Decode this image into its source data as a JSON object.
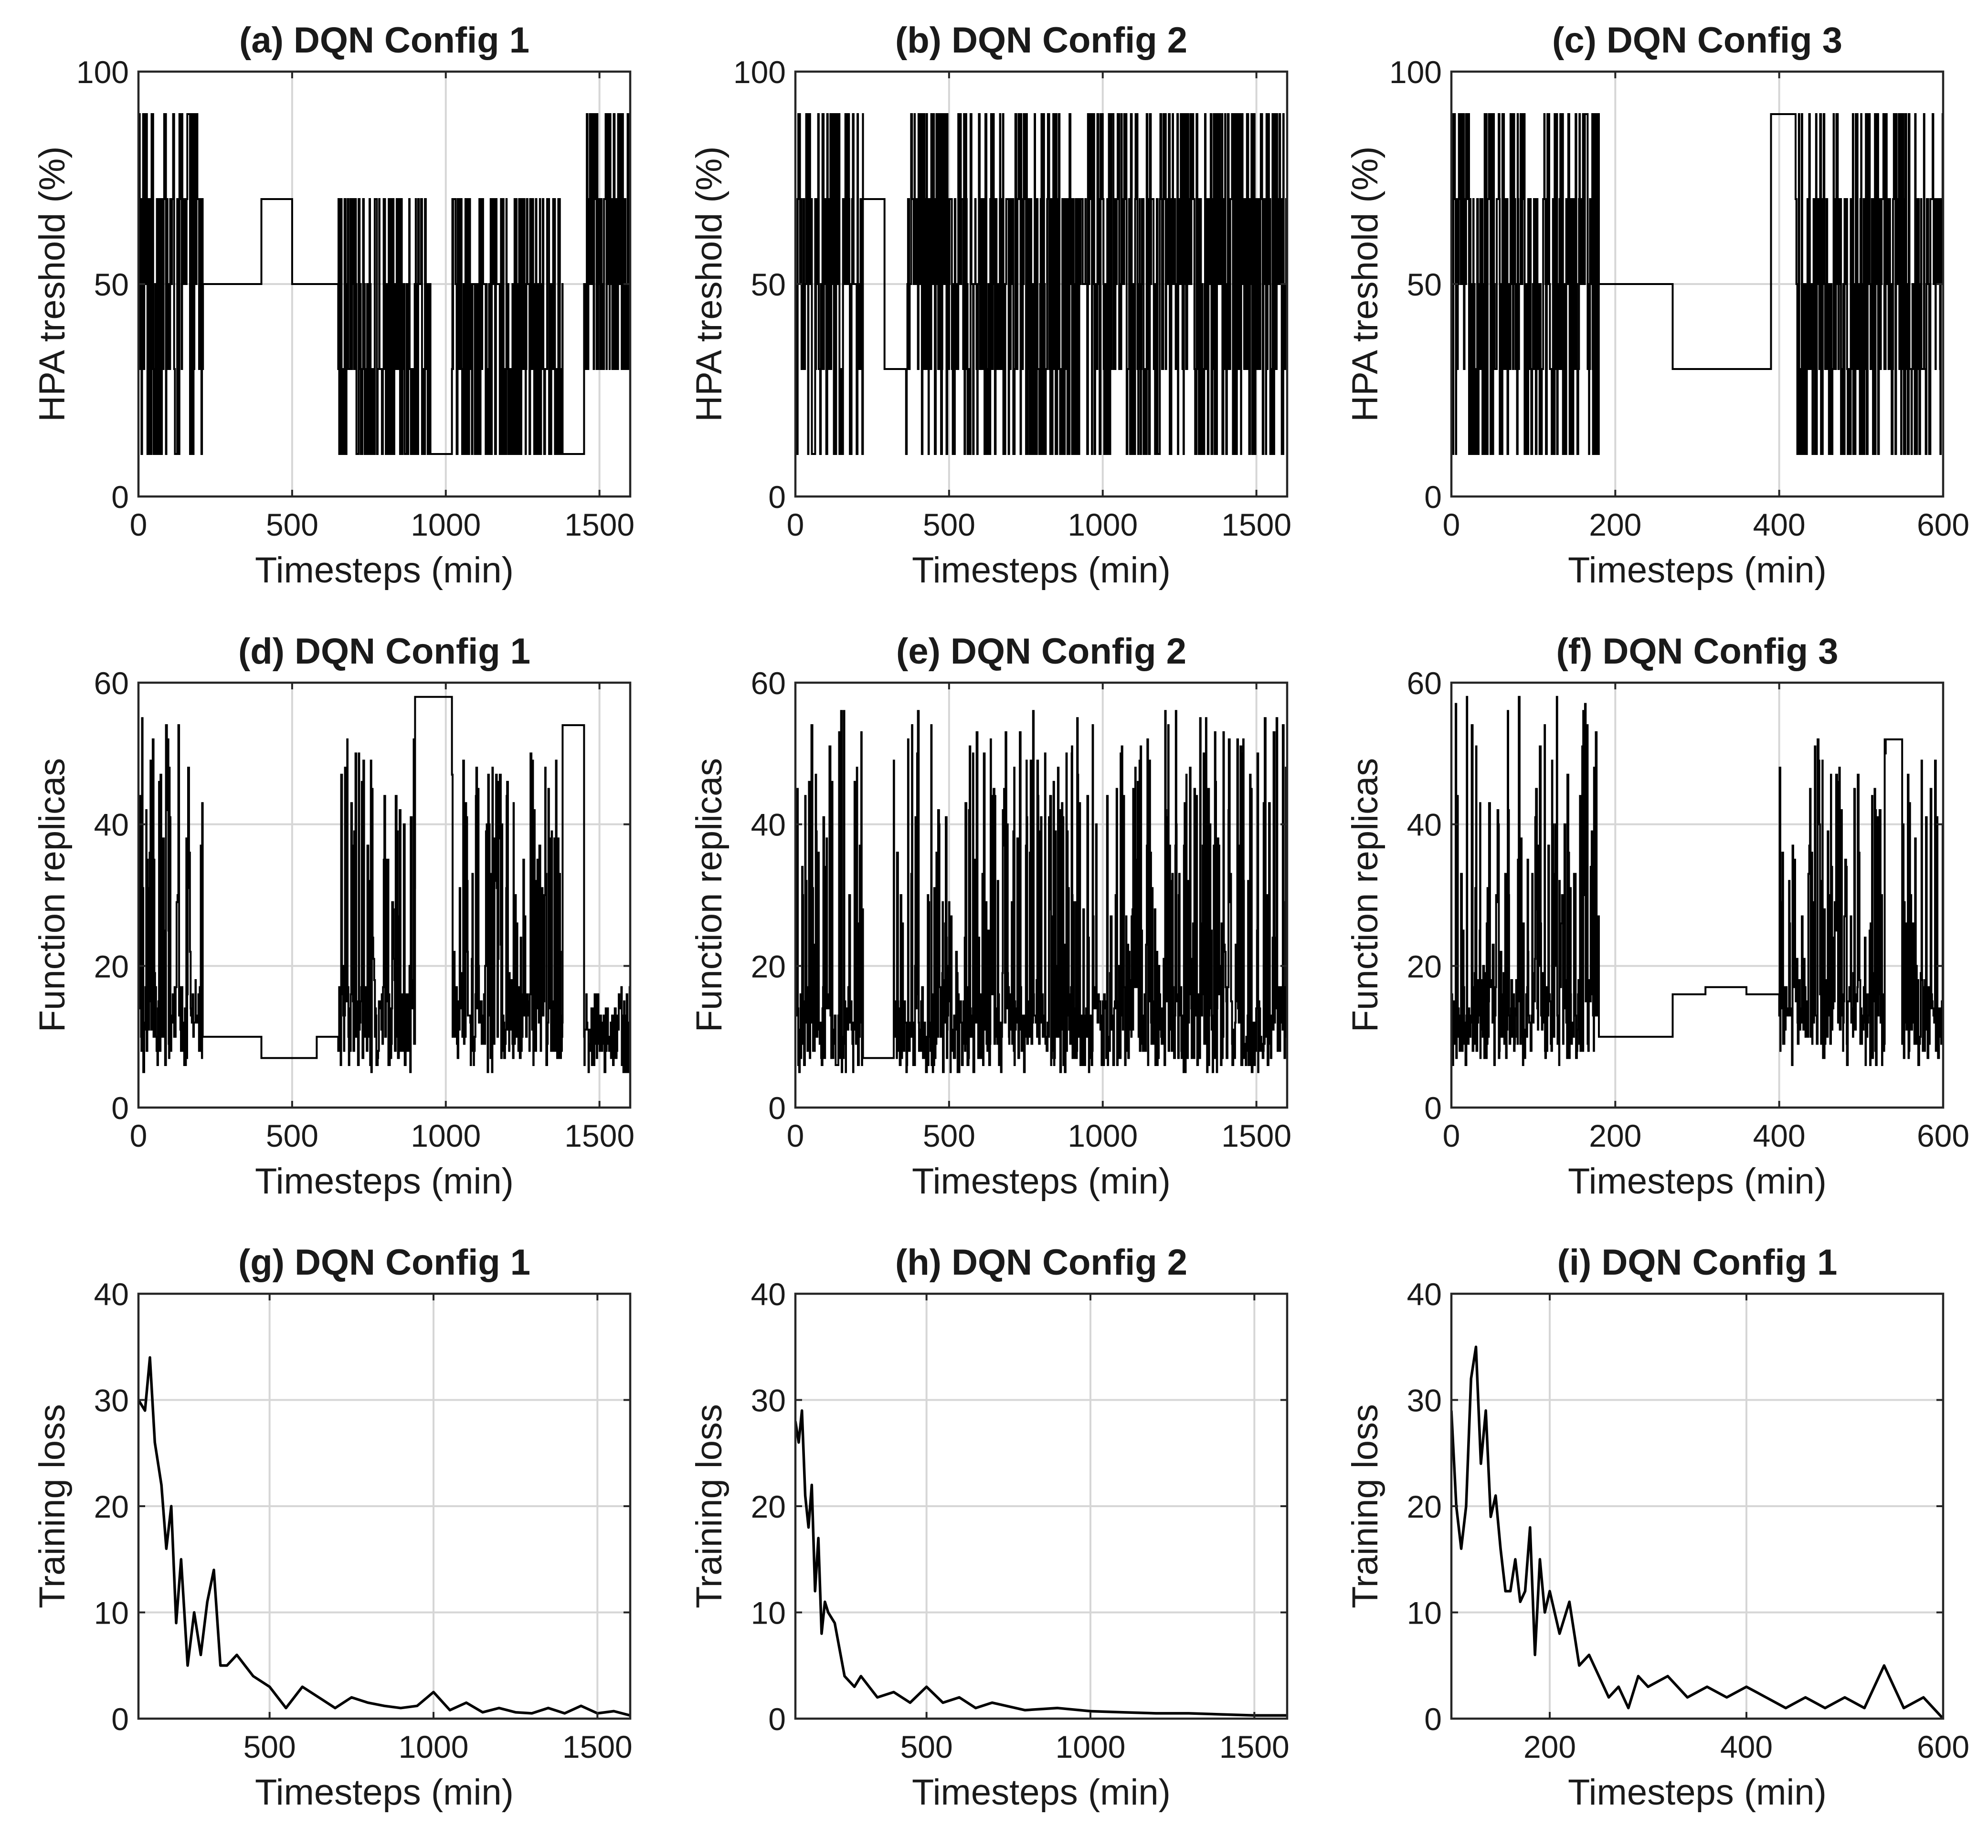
{
  "figure": {
    "background": "#ffffff",
    "line_color": "#000000",
    "grid_color": "#d6d6d6"
  },
  "chart_data": [
    {
      "id": "a",
      "type": "line",
      "title": "(a) DQN Config 1",
      "xlabel": "Timesteps (min)",
      "ylabel": "HPA treshold (%)",
      "xlim": [
        0,
        1600
      ],
      "ylim": [
        0,
        100
      ],
      "xticks": [
        0,
        500,
        1000,
        1500
      ],
      "yticks": [
        0,
        50,
        100
      ],
      "grid": true,
      "series": [
        {
          "kind": "step",
          "levels": [
            10,
            30,
            50,
            70,
            90
          ],
          "segments": [
            {
              "x": [
                0,
                210
              ],
              "mode": "dense",
              "levels": [
                10,
                30,
                50,
                70,
                90
              ]
            },
            {
              "x": [
                210,
                400
              ],
              "mode": "hold",
              "value": 50
            },
            {
              "x": [
                400,
                500
              ],
              "mode": "hold",
              "value": 70
            },
            {
              "x": [
                500,
                650
              ],
              "mode": "hold",
              "value": 50
            },
            {
              "x": [
                650,
                950
              ],
              "mode": "dense",
              "levels": [
                10,
                30,
                50,
                70
              ]
            },
            {
              "x": [
                950,
                1020
              ],
              "mode": "hold",
              "value": 10
            },
            {
              "x": [
                1020,
                1380
              ],
              "mode": "dense",
              "levels": [
                10,
                30,
                50,
                70
              ]
            },
            {
              "x": [
                1380,
                1450
              ],
              "mode": "hold",
              "value": 10
            },
            {
              "x": [
                1450,
                1600
              ],
              "mode": "dense",
              "levels": [
                30,
                50,
                70,
                90
              ]
            }
          ]
        }
      ]
    },
    {
      "id": "b",
      "type": "line",
      "title": "(b) DQN Config 2",
      "xlabel": "Timesteps (min)",
      "ylabel": "HPA treshold (%)",
      "xlim": [
        0,
        1600
      ],
      "ylim": [
        0,
        100
      ],
      "xticks": [
        0,
        500,
        1000,
        1500
      ],
      "yticks": [
        0,
        50,
        100
      ],
      "grid": true,
      "series": [
        {
          "kind": "step",
          "levels": [
            10,
            30,
            50,
            70,
            90
          ],
          "segments": [
            {
              "x": [
                0,
                220
              ],
              "mode": "dense",
              "levels": [
                10,
                30,
                50,
                70,
                90
              ]
            },
            {
              "x": [
                220,
                290
              ],
              "mode": "hold",
              "value": 70
            },
            {
              "x": [
                290,
                360
              ],
              "mode": "hold",
              "value": 30
            },
            {
              "x": [
                360,
                1600
              ],
              "mode": "dense",
              "levels": [
                10,
                30,
                50,
                70,
                90
              ]
            }
          ]
        }
      ]
    },
    {
      "id": "c",
      "type": "line",
      "title": "(c) DQN Config 3",
      "xlabel": "Timesteps (min)",
      "ylabel": "HPA treshold (%)",
      "xlim": [
        0,
        600
      ],
      "ylim": [
        0,
        100
      ],
      "xticks": [
        0,
        200,
        400,
        600
      ],
      "yticks": [
        0,
        50,
        100
      ],
      "grid": true,
      "series": [
        {
          "kind": "step",
          "levels": [
            10,
            30,
            50,
            70,
            90
          ],
          "segments": [
            {
              "x": [
                0,
                180
              ],
              "mode": "dense",
              "levels": [
                10,
                30,
                50,
                70,
                90
              ]
            },
            {
              "x": [
                180,
                270
              ],
              "mode": "hold",
              "value": 50
            },
            {
              "x": [
                270,
                310
              ],
              "mode": "hold",
              "value": 30
            },
            {
              "x": [
                310,
                390
              ],
              "mode": "hold",
              "value": 30
            },
            {
              "x": [
                390,
                420
              ],
              "mode": "hold",
              "value": 90
            },
            {
              "x": [
                420,
                600
              ],
              "mode": "dense",
              "levels": [
                10,
                30,
                50,
                70,
                90
              ]
            }
          ]
        }
      ]
    },
    {
      "id": "d",
      "type": "line",
      "title": "(d) DQN Config 1",
      "xlabel": "Timesteps (min)",
      "ylabel": "Function replicas",
      "xlim": [
        0,
        1600
      ],
      "ylim": [
        0,
        60
      ],
      "xticks": [
        0,
        500,
        1000,
        1500
      ],
      "yticks": [
        0,
        20,
        40,
        60
      ],
      "grid": true,
      "series": [
        {
          "kind": "step",
          "segments": [
            {
              "x": [
                0,
                210
              ],
              "mode": "dense",
              "range": [
                5,
                56
              ]
            },
            {
              "x": [
                210,
                400
              ],
              "mode": "hold",
              "value": 10
            },
            {
              "x": [
                400,
                580
              ],
              "mode": "hold",
              "value": 7
            },
            {
              "x": [
                580,
                650
              ],
              "mode": "hold",
              "value": 10
            },
            {
              "x": [
                650,
                900
              ],
              "mode": "dense",
              "range": [
                5,
                53
              ]
            },
            {
              "x": [
                900,
                1020
              ],
              "mode": "hold",
              "value": 58
            },
            {
              "x": [
                1020,
                1380
              ],
              "mode": "dense",
              "range": [
                5,
                50
              ]
            },
            {
              "x": [
                1380,
                1450
              ],
              "mode": "hold",
              "value": 54
            },
            {
              "x": [
                1450,
                1600
              ],
              "mode": "dense",
              "range": [
                5,
                17
              ]
            }
          ]
        }
      ]
    },
    {
      "id": "e",
      "type": "line",
      "title": "(e) DQN Config 2",
      "xlabel": "Timesteps (min)",
      "ylabel": "Function replicas",
      "xlim": [
        0,
        1600
      ],
      "ylim": [
        0,
        60
      ],
      "xticks": [
        0,
        500,
        1000,
        1500
      ],
      "yticks": [
        0,
        20,
        40,
        60
      ],
      "grid": true,
      "series": [
        {
          "kind": "step",
          "segments": [
            {
              "x": [
                0,
                220
              ],
              "mode": "dense",
              "range": [
                5,
                59
              ]
            },
            {
              "x": [
                220,
                320
              ],
              "mode": "hold",
              "value": 7
            },
            {
              "x": [
                320,
                1600
              ],
              "mode": "dense",
              "range": [
                5,
                56
              ]
            }
          ]
        }
      ]
    },
    {
      "id": "f",
      "type": "line",
      "title": "(f) DQN Config 3",
      "xlabel": "Timesteps (min)",
      "ylabel": "Function replicas",
      "xlim": [
        0,
        600
      ],
      "ylim": [
        0,
        60
      ],
      "xticks": [
        0,
        200,
        400,
        600
      ],
      "yticks": [
        0,
        20,
        40,
        60
      ],
      "grid": true,
      "series": [
        {
          "kind": "step",
          "segments": [
            {
              "x": [
                0,
                180
              ],
              "mode": "dense",
              "range": [
                6,
                58
              ]
            },
            {
              "x": [
                180,
                270
              ],
              "mode": "hold",
              "value": 10
            },
            {
              "x": [
                270,
                310
              ],
              "mode": "hold",
              "value": 16
            },
            {
              "x": [
                310,
                360
              ],
              "mode": "hold",
              "value": 17
            },
            {
              "x": [
                360,
                400
              ],
              "mode": "hold",
              "value": 16
            },
            {
              "x": [
                400,
                530
              ],
              "mode": "dense",
              "range": [
                6,
                52
              ]
            },
            {
              "x": [
                530,
                550
              ],
              "mode": "hold",
              "value": 52
            },
            {
              "x": [
                550,
                600
              ],
              "mode": "dense",
              "range": [
                6,
                52
              ]
            }
          ]
        }
      ]
    },
    {
      "id": "g",
      "type": "line",
      "title": "(g) DQN Config 1",
      "xlabel": "Timesteps (min)",
      "ylabel": "Training loss",
      "xlim": [
        100,
        1600
      ],
      "ylim": [
        0,
        40
      ],
      "xticks": [
        500,
        1000,
        1500
      ],
      "yticks": [
        0,
        10,
        20,
        30,
        40
      ],
      "grid": true,
      "series": [
        {
          "kind": "line",
          "x": [
            100,
            120,
            135,
            150,
            170,
            185,
            200,
            215,
            230,
            250,
            270,
            290,
            310,
            330,
            350,
            370,
            400,
            450,
            500,
            550,
            600,
            650,
            700,
            750,
            800,
            850,
            900,
            950,
            1000,
            1050,
            1100,
            1150,
            1200,
            1250,
            1300,
            1350,
            1400,
            1450,
            1500,
            1550,
            1600
          ],
          "y": [
            30,
            29,
            34,
            26,
            22,
            16,
            20,
            9,
            15,
            5,
            10,
            6,
            11,
            14,
            5,
            5,
            6,
            4,
            3,
            1,
            3,
            2,
            1,
            2,
            1.5,
            1.2,
            1,
            1.2,
            2.5,
            0.8,
            1.5,
            0.6,
            1,
            0.6,
            0.5,
            1,
            0.5,
            1.2,
            0.5,
            0.7,
            0.3
          ]
        }
      ]
    },
    {
      "id": "h",
      "type": "line",
      "title": "(h) DQN Config 2",
      "xlabel": "Timesteps (min)",
      "ylabel": "Training loss",
      "xlim": [
        100,
        1600
      ],
      "ylim": [
        0,
        40
      ],
      "xticks": [
        500,
        1000,
        1500
      ],
      "yticks": [
        0,
        10,
        20,
        30,
        40
      ],
      "grid": true,
      "series": [
        {
          "kind": "line",
          "x": [
            100,
            110,
            120,
            130,
            140,
            150,
            160,
            170,
            180,
            190,
            200,
            220,
            250,
            280,
            300,
            350,
            400,
            450,
            500,
            550,
            600,
            650,
            700,
            800,
            900,
            1000,
            1100,
            1200,
            1300,
            1400,
            1500,
            1600
          ],
          "y": [
            28,
            26,
            29,
            21,
            18,
            22,
            12,
            17,
            8,
            11,
            10,
            9,
            4,
            3,
            4,
            2,
            2.5,
            1.5,
            3,
            1.5,
            2,
            1,
            1.5,
            0.8,
            1,
            0.7,
            0.6,
            0.5,
            0.5,
            0.4,
            0.3,
            0.3
          ]
        }
      ]
    },
    {
      "id": "i",
      "type": "line",
      "title": "(i) DQN Config 1",
      "xlabel": "Timesteps (min)",
      "ylabel": "Training loss",
      "xlim": [
        100,
        600
      ],
      "ylim": [
        0,
        40
      ],
      "xticks": [
        200,
        400,
        600
      ],
      "yticks": [
        0,
        10,
        20,
        30,
        40
      ],
      "grid": true,
      "series": [
        {
          "kind": "line",
          "x": [
            100,
            105,
            110,
            115,
            120,
            125,
            130,
            135,
            140,
            145,
            150,
            155,
            160,
            165,
            170,
            175,
            180,
            185,
            190,
            195,
            200,
            210,
            220,
            230,
            240,
            250,
            260,
            270,
            280,
            290,
            300,
            320,
            340,
            360,
            380,
            400,
            420,
            440,
            460,
            480,
            500,
            520,
            540,
            560,
            580,
            600
          ],
          "y": [
            29,
            20,
            16,
            20,
            32,
            35,
            24,
            29,
            19,
            21,
            16,
            12,
            12,
            15,
            11,
            12,
            18,
            6,
            15,
            10,
            12,
            8,
            11,
            5,
            6,
            4,
            2,
            3,
            1,
            4,
            3,
            4,
            2,
            3,
            2,
            3,
            2,
            1,
            2,
            1,
            2,
            1,
            5,
            1,
            2,
            0
          ]
        }
      ]
    }
  ]
}
